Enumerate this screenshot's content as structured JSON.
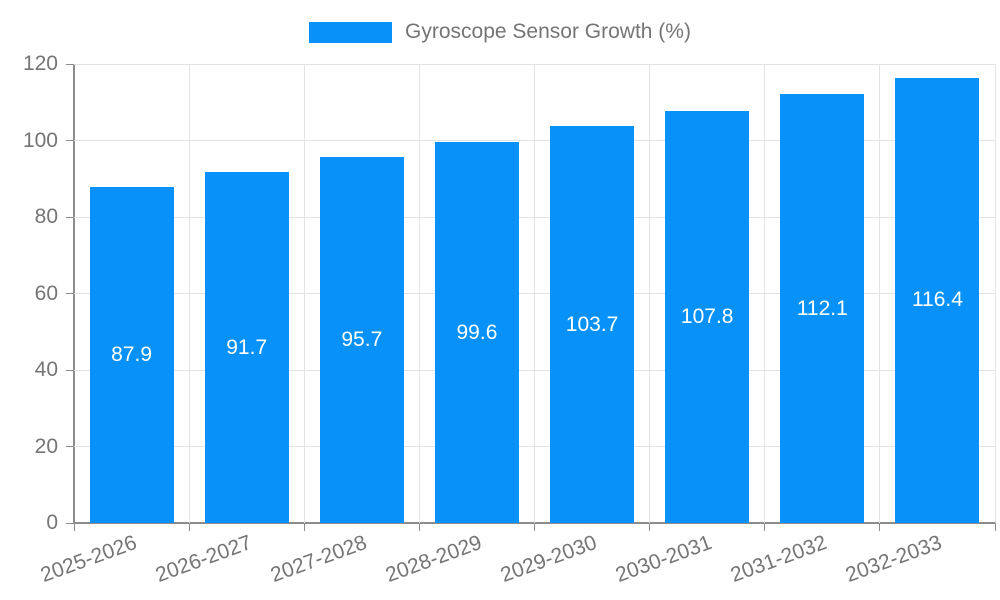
{
  "chart_data": {
    "type": "bar",
    "title": "",
    "series_name": "Gyroscope Sensor Growth (%)",
    "categories": [
      "2025-2026",
      "2026-2027",
      "2027-2028",
      "2028-2029",
      "2029-2030",
      "2030-2031",
      "2031-2032",
      "2032-2033"
    ],
    "values": [
      87.9,
      91.7,
      95.7,
      99.6,
      103.7,
      107.8,
      112.1,
      116.4
    ],
    "value_labels": [
      "87.9",
      "91.7",
      "95.7",
      "99.6",
      "103.7",
      "107.8",
      "112.1",
      "116.4"
    ],
    "xlabel": "",
    "ylabel": "",
    "ylim": [
      0,
      120
    ],
    "yticks": [
      0,
      20,
      40,
      60,
      80,
      100,
      120
    ],
    "grid": "on",
    "legend_position": "top-center",
    "x_tick_label_rotation_deg": -20,
    "colors": {
      "bar": "#0891f8",
      "grid": "#e3e3e3",
      "axis": "#8c8c8c",
      "text": "#757575",
      "value_label": "#ffffff",
      "background": "#ffffff"
    }
  }
}
